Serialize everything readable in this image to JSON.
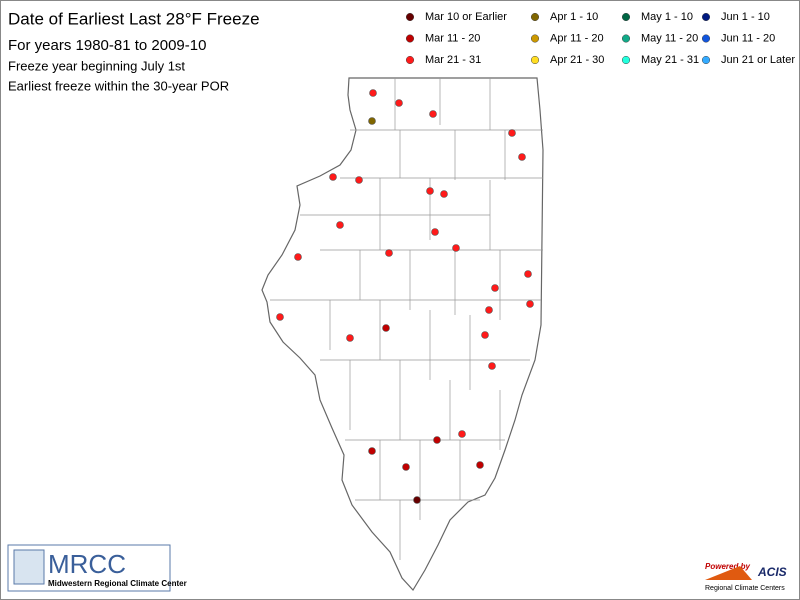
{
  "header": {
    "title": "Date of Earliest Last 28°F Freeze",
    "subtitle": "For years 1980-81 to 2009-10",
    "note1": "Freeze year beginning July 1st",
    "note2": "Earliest freeze within the 30-year POR"
  },
  "legend": [
    {
      "label": "Mar 10 or Earlier",
      "color": "#660000"
    },
    {
      "label": "Mar 11 - 20",
      "color": "#c00000"
    },
    {
      "label": "Mar 21 - 31",
      "color": "#ff1a1a"
    },
    {
      "label": "Apr 1 - 10",
      "color": "#806600"
    },
    {
      "label": "Apr 11 - 20",
      "color": "#cc9900"
    },
    {
      "label": "Apr 21 - 30",
      "color": "#ffdd22"
    },
    {
      "label": "May 1 - 10",
      "color": "#006644"
    },
    {
      "label": "May 11 - 20",
      "color": "#11aa88"
    },
    {
      "label": "May 21 - 31",
      "color": "#22ffdd"
    },
    {
      "label": "Jun 1 - 10",
      "color": "#001a80"
    },
    {
      "label": "Jun 11 - 20",
      "color": "#1155dd"
    },
    {
      "label": "Jun 21 or Later",
      "color": "#33aaff"
    }
  ],
  "logos": {
    "mrcc": "MRCC",
    "mrcc_name": "Midwestern Regional Climate Center",
    "powered": "Powered by",
    "acis": "ACIS",
    "rcc": "Regional Climate Centers"
  }
}
